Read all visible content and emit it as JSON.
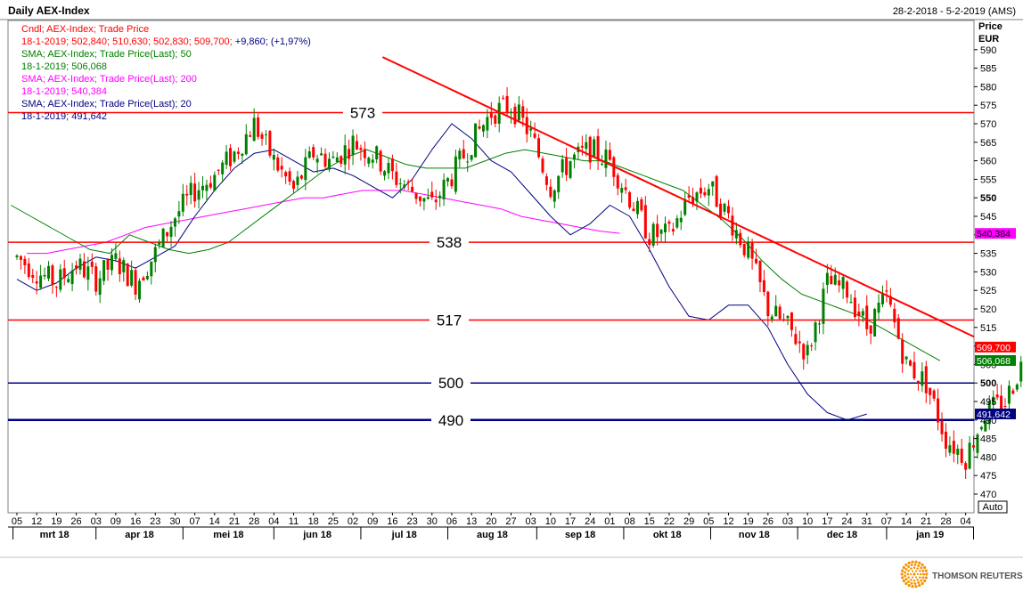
{
  "header": {
    "title": "Daily AEX-Index",
    "date_range": "28-2-2018 - 5-2-2019 (AMS)"
  },
  "legend": [
    {
      "text": "Cndl; AEX-Index; Trade Price",
      "color": "#ff0000"
    },
    {
      "text": "18-1-2019; 502,840; 510,630; 502,830; 509,700; +9,860; (+1,97%)",
      "color": "#ff0000",
      "tail_color": "#000080",
      "tail_from": "+9,860"
    },
    {
      "text": "SMA; AEX-Index; Trade Price(Last); 50",
      "color": "#008000"
    },
    {
      "text": "18-1-2019; 506,068",
      "color": "#008000"
    },
    {
      "text": "SMA; AEX-Index; Trade Price(Last); 200",
      "color": "#ff00ff"
    },
    {
      "text": "18-1-2019; 540,384",
      "color": "#ff00ff"
    },
    {
      "text": "SMA; AEX-Index; Trade Price(Last); 20",
      "color": "#000080"
    },
    {
      "text": "18-1-2019; 491,642",
      "color": "#000080"
    }
  ],
  "axis": {
    "price_label": "Price",
    "currency_label": "EUR",
    "auto_label": "Auto"
  },
  "footer": {
    "brand": "THOMSON REUTERS"
  },
  "chart_data": {
    "type": "candlestick",
    "instrument": "AEX-Index",
    "ylim": [
      467,
      597
    ],
    "yticks": [
      470,
      475,
      480,
      485,
      490,
      495,
      500,
      505,
      510,
      515,
      520,
      525,
      530,
      535,
      540,
      545,
      550,
      555,
      560,
      565,
      570,
      575,
      580,
      585,
      590
    ],
    "ytick_labels": [
      "470",
      "475",
      "480",
      "485",
      "490",
      "495",
      "500",
      "505",
      "510",
      "515",
      "520",
      "525",
      "530",
      "535",
      "540",
      "545",
      "550",
      "555",
      "560",
      "565",
      "570",
      "575",
      "580",
      "585",
      "590"
    ],
    "bold_ticks": [
      500,
      550
    ],
    "x_day_ticks": [
      "05",
      "12",
      "19",
      "26",
      "03",
      "09",
      "16",
      "23",
      "30",
      "07",
      "14",
      "21",
      "28",
      "04",
      "11",
      "18",
      "25",
      "02",
      "09",
      "16",
      "23",
      "30",
      "06",
      "13",
      "20",
      "27",
      "03",
      "10",
      "17",
      "24",
      "01",
      "08",
      "15",
      "22",
      "29",
      "05",
      "12",
      "19",
      "26",
      "03",
      "10",
      "17",
      "24",
      "31",
      "07",
      "14",
      "21",
      "28",
      "04"
    ],
    "months": [
      "mrt 18",
      "apr 18",
      "mei 18",
      "jun 18",
      "jul 18",
      "aug 18",
      "sep 18",
      "okt 18",
      "nov 18",
      "dec 18",
      "jan 19"
    ],
    "horizontal_levels": [
      {
        "value": 573,
        "label": "573",
        "color": "#ff0000"
      },
      {
        "value": 538,
        "label": "538",
        "color": "#ff0000"
      },
      {
        "value": 517,
        "label": "517",
        "color": "#ff0000"
      },
      {
        "value": 500,
        "label": "500",
        "color": "#000080"
      },
      {
        "value": 490,
        "label": "490",
        "color": "#000080"
      }
    ],
    "trendline": {
      "from_week": 18.5,
      "from_value": 588,
      "to_week": 50.6,
      "to_value": 507,
      "color": "#ff0000"
    },
    "last_value_tags": [
      {
        "value": 540.384,
        "label": "540,384",
        "color": "#ff00ff"
      },
      {
        "value": 509.7,
        "label": "509,700",
        "color": "#ff0000"
      },
      {
        "value": 506.068,
        "label": "506,068",
        "color": "#008000"
      },
      {
        "value": 491.642,
        "label": "491,642",
        "color": "#000080"
      }
    ],
    "price_path_weekly": [
      534,
      530,
      527,
      532,
      528,
      533,
      527,
      535,
      545,
      552,
      556,
      562,
      570,
      560,
      552,
      562,
      560,
      565,
      562,
      556,
      552,
      548,
      556,
      565,
      573,
      575,
      567,
      553,
      560,
      563,
      560,
      550,
      540,
      540,
      550,
      553,
      545,
      535,
      520,
      515,
      508,
      527,
      525,
      515,
      523,
      505,
      500,
      485,
      480,
      492,
      495,
      507
    ],
    "sma50_weekly": [
      540,
      538,
      536,
      535,
      536,
      538,
      542,
      546,
      550,
      554,
      558,
      561,
      563,
      561,
      559,
      558,
      558,
      558,
      560,
      562,
      563,
      562,
      561,
      560,
      560,
      558,
      556,
      554,
      552,
      548,
      544,
      539,
      533,
      528,
      524,
      522,
      520,
      518,
      515,
      512,
      509,
      506
    ],
    "sma50_start_week": 10,
    "sma200_weekly": [
      535,
      535,
      536,
      537,
      538,
      540,
      542,
      543,
      544,
      545,
      546,
      547,
      548,
      549,
      550,
      550,
      551,
      552,
      552,
      552,
      551,
      550,
      549,
      548,
      547,
      545,
      544,
      543,
      542,
      541,
      540.4
    ],
    "sma200_start_week": 20,
    "sma20_weekly": [
      533,
      531,
      534,
      537,
      545,
      552,
      558,
      562,
      563,
      560,
      557,
      558,
      556,
      553,
      550,
      555,
      563,
      570,
      566,
      560,
      557,
      551,
      545,
      540,
      543,
      548,
      545,
      536,
      526,
      518,
      517,
      521,
      521,
      515,
      505,
      497,
      492,
      490,
      491.6
    ],
    "sma20_start_week": 12,
    "last_candle": {
      "date": "18-1-2019",
      "open": 502.84,
      "high": 510.63,
      "low": 502.83,
      "close": 509.7
    }
  }
}
